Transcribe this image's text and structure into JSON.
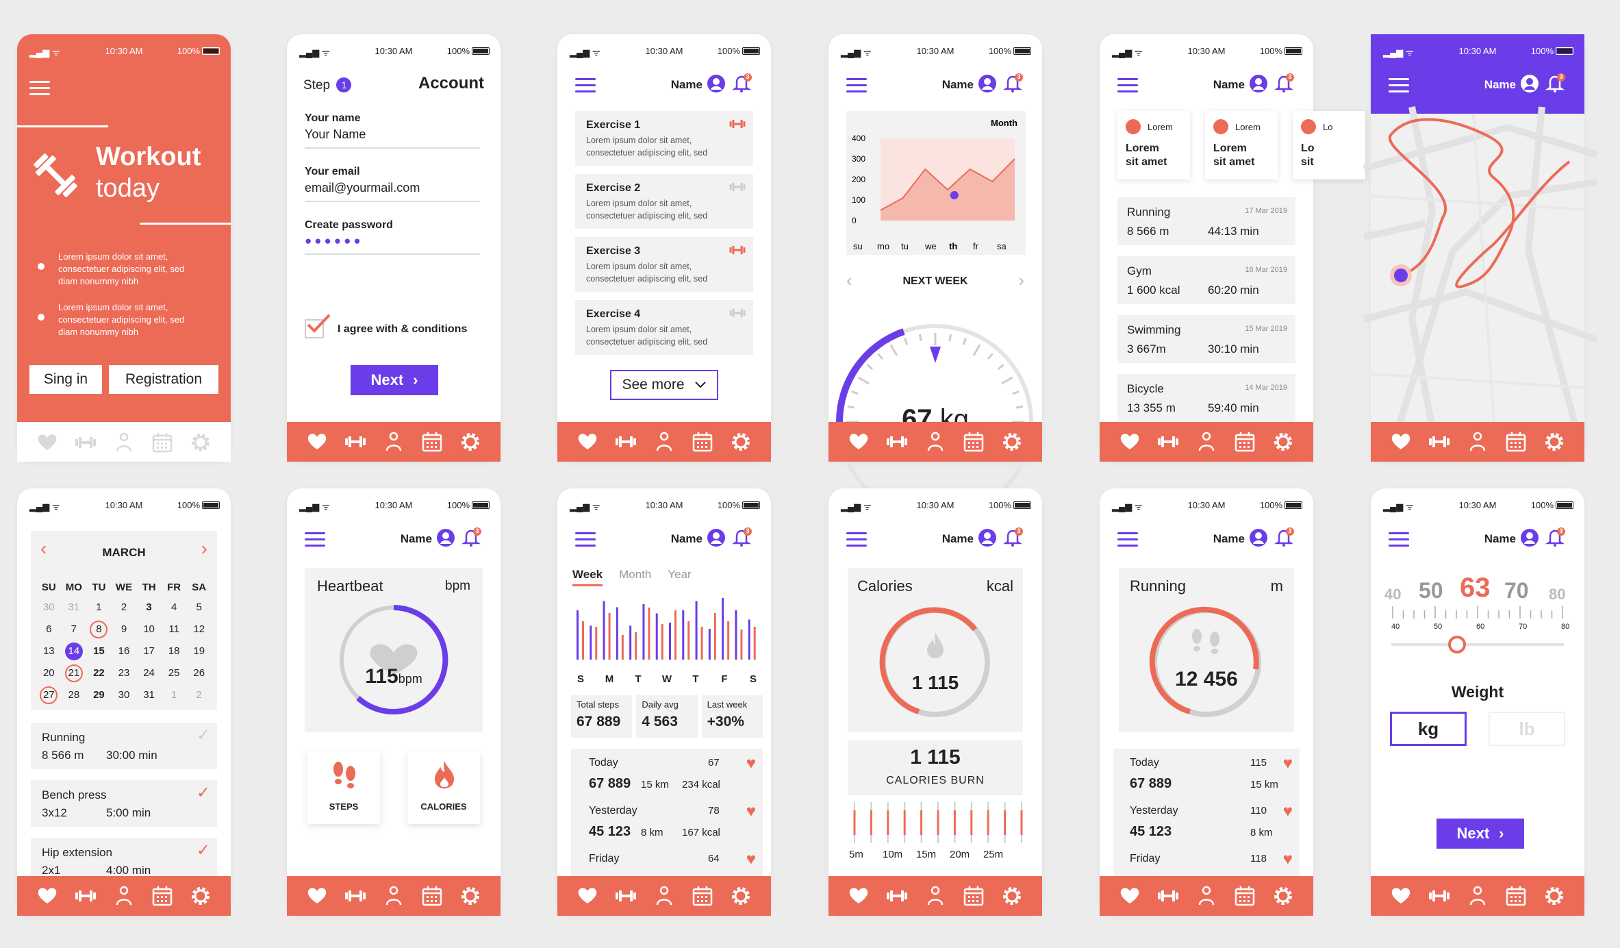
{
  "status": {
    "time": "10:30 AM",
    "battery": "100%"
  },
  "header": {
    "name": "Name",
    "bell_count": "3"
  },
  "colors": {
    "coral": "#ec6b57",
    "purple": "#6a3de8",
    "gray": "#f2f2f2"
  },
  "tabs": [
    "heart-icon",
    "dumbbell-icon",
    "person-icon",
    "calendar-icon",
    "gear-icon"
  ],
  "welcome": {
    "title_1": "Workout",
    "title_2": "today",
    "bullet_1a": "Lorem ipsum dolor sit amet,",
    "bullet_1b": "consectetuer adipiscing elit, sed",
    "bullet_1c": "diam nonummy nibh",
    "bullet_2a": "Lorem ipsum dolor sit amet,",
    "bullet_2b": "consectetuer adipiscing elit, sed",
    "bullet_2c": "diam nonummy nibh",
    "signin": "Sing in",
    "register": "Registration"
  },
  "signup": {
    "step_label": "Step",
    "step_num": "1",
    "title": "Account",
    "name_label": "Your name",
    "name_value": "Your Name",
    "email_label": "Your email",
    "email_value": "email@yourmail.com",
    "password_label": "Create password",
    "password_dots": "●●●●●●",
    "agree": "I agree with & conditions",
    "next": "Next"
  },
  "exercises": {
    "items": [
      {
        "title": "Exercise 1",
        "d1": "Lorem ipsum dolor sit amet,",
        "d2": "consectetuer adipiscing elit, sed"
      },
      {
        "title": "Exercise 2",
        "d1": "Lorem ipsum dolor sit amet,",
        "d2": "consectetuer adipiscing elit, sed"
      },
      {
        "title": "Exercise 3",
        "d1": "Lorem ipsum dolor sit amet,",
        "d2": "consectetuer adipiscing elit, sed"
      },
      {
        "title": "Exercise 4",
        "d1": "Lorem ipsum dolor sit amet,",
        "d2": "consectetuer adipiscing elit, sed"
      }
    ],
    "see_more": "See more"
  },
  "weight_chart": {
    "period": "Month",
    "next_week": "NEXT WEEK",
    "weight_value": "67",
    "weight_unit": "kg"
  },
  "chart_data": {
    "type": "area",
    "title": "Month",
    "x": [
      "su",
      "mo",
      "tu",
      "we",
      "th",
      "fr",
      "sa"
    ],
    "ylim": [
      0,
      400
    ],
    "yticks": [
      "400",
      "300",
      "200",
      "100",
      "0"
    ],
    "values": [
      50,
      110,
      250,
      150,
      250,
      190,
      300
    ],
    "highlight_day": "th"
  },
  "history": {
    "tiles": [
      {
        "label": "Lorem",
        "t1": "Lorem",
        "t2": "sit amet"
      },
      {
        "label": "Lorem",
        "t1": "Lorem",
        "t2": "sit amet"
      },
      {
        "label": "Lo",
        "t1": "Lo",
        "t2": "sit"
      }
    ],
    "rows": [
      {
        "name": "Running",
        "date": "17 Mar 2019",
        "v1": "8 566 m",
        "v2": "44:13 min"
      },
      {
        "name": "Gym",
        "date": "16 Mar 2019",
        "v1": "1 600 kcal",
        "v2": "60:20 min"
      },
      {
        "name": "Swimming",
        "date": "15 Mar 2019",
        "v1": "3 667m",
        "v2": "30:10 min"
      },
      {
        "name": "Bicycle",
        "date": "14 Mar 2019",
        "v1": "13 355 m",
        "v2": "59:40 min"
      }
    ]
  },
  "calendar": {
    "month": "MARCH",
    "days": [
      "SU",
      "MO",
      "TU",
      "WE",
      "TH",
      "FR",
      "SA"
    ],
    "cells": [
      "30",
      "31",
      "1",
      "2",
      "3",
      "4",
      "5",
      "6",
      "7",
      "8",
      "9",
      "10",
      "11",
      "12",
      "13",
      "14",
      "15",
      "16",
      "17",
      "18",
      "19",
      "20",
      "21",
      "22",
      "23",
      "24",
      "25",
      "26",
      "27",
      "28",
      "29",
      "30",
      "31",
      "1",
      "2"
    ],
    "activities": [
      {
        "name": "Running",
        "v1": "8 566 m",
        "v2": "30:00 min"
      },
      {
        "name": "Bench press",
        "v1": "3x12",
        "v2": "5:00 min"
      },
      {
        "name": "Hip extension",
        "v1": "2x1",
        "v2": "4:00 min"
      }
    ]
  },
  "heartbeat": {
    "title": "Heartbeat",
    "unit": "bpm",
    "value": "115",
    "value_unit": "bpm",
    "steps": "STEPS",
    "calories": "CALORIES"
  },
  "steps": {
    "tabs": [
      "Week",
      "Month",
      "Year"
    ],
    "days": [
      "S",
      "M",
      "T",
      "W",
      "T",
      "F",
      "S"
    ],
    "bars_purple": [
      0.8,
      0.55,
      0.95,
      0.85,
      0.55,
      0.9,
      0.75,
      0.6,
      0.8,
      0.95,
      0.5,
      1.0,
      0.8,
      0.65
    ],
    "bars_coral": [
      0.7,
      0.6,
      0.85,
      0.45,
      0.5,
      0.95,
      0.65,
      0.9,
      0.7,
      0.6,
      0.85,
      0.7,
      0.55,
      0.6
    ],
    "stats": [
      {
        "label": "Total steps",
        "value": "67 889"
      },
      {
        "label": "Daily avg",
        "value": "4 563"
      },
      {
        "label": "Last week",
        "value": "+30%"
      }
    ],
    "rows": [
      {
        "day": "Today",
        "n": "67",
        "value": "67 889",
        "km": "15 km",
        "kcal": "234 kcal"
      },
      {
        "day": "Yesterday",
        "n": "78",
        "value": "45 123",
        "km": "8 km",
        "kcal": "167 kcal"
      },
      {
        "day": "Friday",
        "n": "64",
        "value": "",
        "km": "",
        "kcal": ""
      }
    ]
  },
  "calories": {
    "title": "Calories",
    "unit": "kcal",
    "value": "1 115",
    "burn_value": "1 115",
    "burn_label": "CALORIES BURN",
    "ticks": [
      "5m",
      "10m",
      "15m",
      "20m",
      "25m"
    ]
  },
  "running": {
    "title": "Running",
    "unit": "m",
    "value": "12 456",
    "rows": [
      {
        "day": "Today",
        "n": "115",
        "value": "67 889",
        "km": "15 km"
      },
      {
        "day": "Yesterday",
        "n": "110",
        "value": "45 123",
        "km": "8 km"
      },
      {
        "day": "Friday",
        "n": "118",
        "value": "",
        "km": ""
      }
    ]
  },
  "weight_pick": {
    "scale": [
      "40",
      "50",
      "63",
      "70",
      "80"
    ],
    "ticks": [
      "40",
      "50",
      "60",
      "70",
      "80"
    ],
    "slider_fraction": 0.38,
    "label": "Weight",
    "kg": "kg",
    "lb": "lb",
    "next": "Next"
  }
}
